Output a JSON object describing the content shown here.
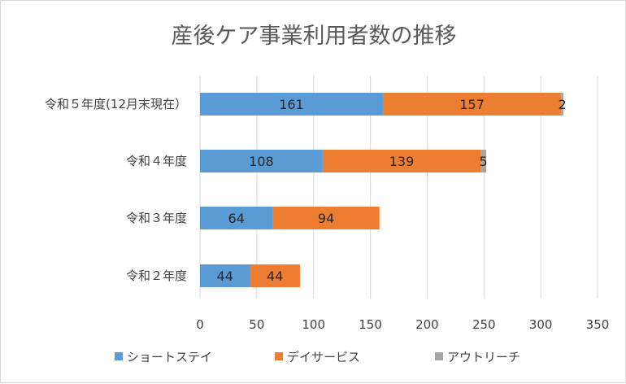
{
  "chart_data": {
    "type": "bar",
    "orientation": "horizontal",
    "stacked": true,
    "title": "産後ケア事業利用者数の推移",
    "categories": [
      "令和５年度(12月末現在）",
      "令和４年度",
      "令和３年度",
      "令和２年度"
    ],
    "series": [
      {
        "name": "ショートステイ",
        "color": "#5b9bd5",
        "values": [
          161,
          108,
          64,
          44
        ]
      },
      {
        "name": "デイサービス",
        "color": "#ed7d31",
        "values": [
          157,
          139,
          94,
          44
        ]
      },
      {
        "name": "アウトリーチ",
        "color": "#a5a5a5",
        "values": [
          2,
          5,
          0,
          0
        ]
      }
    ],
    "xlim": [
      0,
      350
    ],
    "xticks": [
      0,
      50,
      100,
      150,
      200,
      250,
      300,
      350
    ],
    "grid": true,
    "legend_position": "bottom"
  }
}
